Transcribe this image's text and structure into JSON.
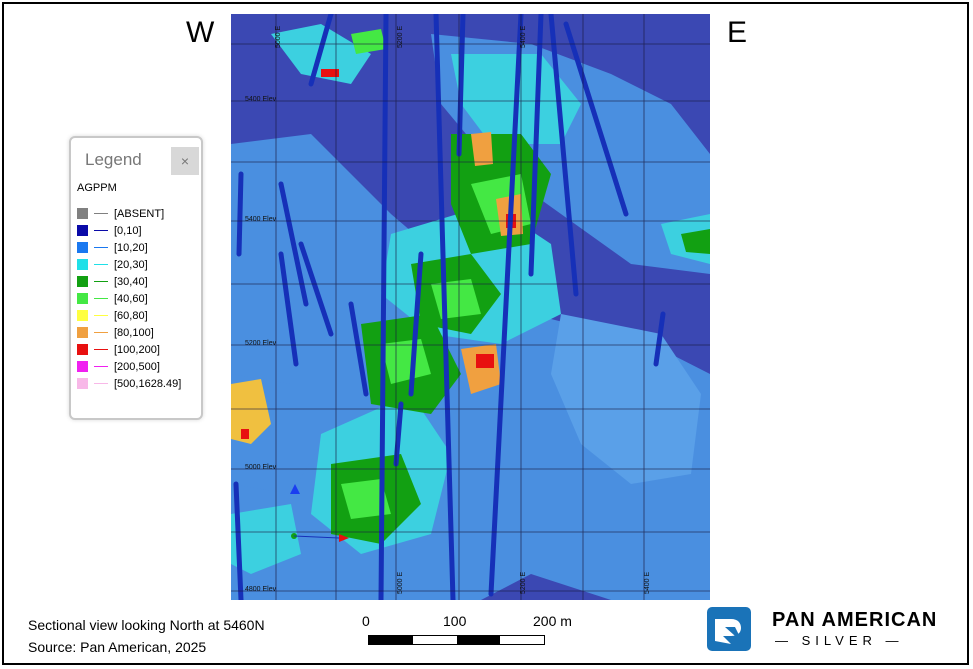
{
  "orientation": {
    "west": "W",
    "east": "E"
  },
  "section": {
    "elevation_labels": [
      "5400 Elev",
      "5400 Elev",
      "5200 Elev",
      "5000 Elev",
      "4800 Elev"
    ],
    "easting_labels": [
      "5000 E",
      "5200 E",
      "5400 E",
      "5000 E",
      "5200 E",
      "5400 E"
    ]
  },
  "legend": {
    "title": "Legend",
    "close_symbol": "×",
    "field": "AGPPM",
    "classes": [
      {
        "label": "[ABSENT]",
        "color": "#808080"
      },
      {
        "label": "[0,10]",
        "color": "#0a0aa8"
      },
      {
        "label": "[10,20]",
        "color": "#1a78f0"
      },
      {
        "label": "[20,30]",
        "color": "#1fe0e8"
      },
      {
        "label": "[30,40]",
        "color": "#12a012"
      },
      {
        "label": "[40,60]",
        "color": "#44e844"
      },
      {
        "label": "[60,80]",
        "color": "#ffff40"
      },
      {
        "label": "[80,100]",
        "color": "#f0a040"
      },
      {
        "label": "[100,200]",
        "color": "#e81010"
      },
      {
        "label": "[200,500]",
        "color": "#f020f0"
      },
      {
        "label": "[500,1628.49]",
        "color": "#f8b8e8"
      }
    ]
  },
  "caption": {
    "line1": "Sectional view looking North at 5460N",
    "line2": "Source: Pan American, 2025"
  },
  "scale": {
    "labels": [
      "0",
      "100",
      "200 m"
    ]
  },
  "logo": {
    "name": "PAN AMERICAN",
    "subtitle": "— SILVER —",
    "color": "#1a73b8"
  }
}
